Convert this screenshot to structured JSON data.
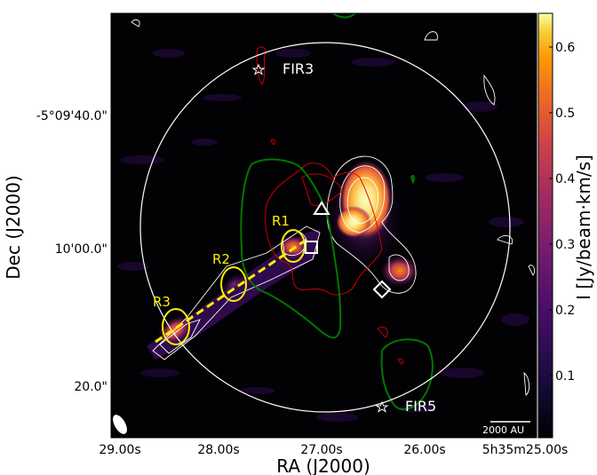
{
  "figure": {
    "ra_axis_label": "RA (J2000)",
    "dec_axis_label": "Dec (J2000)",
    "ra_tick_labels": [
      "29.00s",
      "28.00s",
      "27.00s",
      "26.00s",
      "5h35m25.00s"
    ],
    "dec_tick_labels": [
      "-5°09'40.0\"",
      "10'00.0\"",
      "20.0\""
    ],
    "colorbar_label": "I [Jy/beam·km/s]",
    "colorbar_ticks": [
      "0.1",
      "0.2",
      "0.3",
      "0.4",
      "0.5",
      "0.6"
    ],
    "scale_bar_label": "2000 AU",
    "sources": [
      {
        "name": "FIR3"
      },
      {
        "name": "FIR5"
      }
    ],
    "regions": [
      "R1",
      "R2",
      "R3"
    ],
    "colors": {
      "region_yellow": "#ffee00",
      "contour_red": "#dd0000",
      "contour_green": "#007700",
      "contour_white": "#ffffff",
      "background": "#020104"
    },
    "colormap": "inferno"
  }
}
